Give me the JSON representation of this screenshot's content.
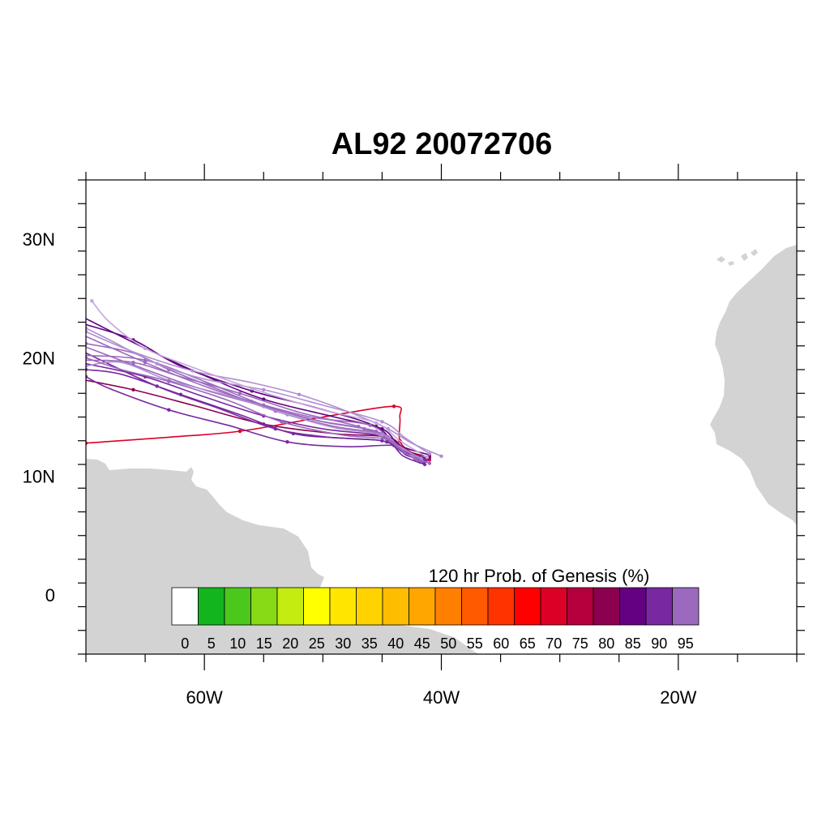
{
  "title": "AL92 20072706",
  "map": {
    "lon_range": [
      -70,
      -10
    ],
    "lat_range": [
      -5,
      35
    ],
    "land_color": "#d3d3d3",
    "ocean_color": "#ffffff",
    "lon_labels": [
      {
        "lon": -60,
        "text": "60W"
      },
      {
        "lon": -40,
        "text": "40W"
      },
      {
        "lon": -20,
        "text": "20W"
      }
    ],
    "lat_labels": [
      {
        "lat": 30,
        "text": "30N"
      },
      {
        "lat": 20,
        "text": "20N"
      },
      {
        "lat": 10,
        "text": "10N"
      },
      {
        "lat": 0,
        "text": "0"
      }
    ]
  },
  "colorbar": {
    "title": "120 hr Prob. of Genesis (%)",
    "labels": [
      "0",
      "5",
      "10",
      "15",
      "20",
      "25",
      "30",
      "35",
      "40",
      "45",
      "50",
      "55",
      "60",
      "65",
      "70",
      "75",
      "80",
      "85",
      "90",
      "95"
    ],
    "colors": [
      "#ffffff",
      "#13b41e",
      "#4cc71c",
      "#88d916",
      "#c4ec10",
      "#ffff00",
      "#ffe600",
      "#ffd200",
      "#ffbd00",
      "#ffa600",
      "#ff8000",
      "#ff5a00",
      "#ff3300",
      "#ff0000",
      "#dc0027",
      "#b4003c",
      "#8c0050",
      "#640082",
      "#7828a0",
      "#9b69be"
    ]
  },
  "chart_data": {
    "type": "map-tracks",
    "title": "AL92 20072706",
    "colorbar_label": "120 hr Prob. of Genesis (%)",
    "tracks": [
      {
        "color": "#dc0027",
        "points": [
          [
            -41.0,
            11.4
          ],
          [
            -42.5,
            12.0
          ],
          [
            -43.5,
            13.0
          ],
          [
            -43.5,
            15.0
          ],
          [
            -44.0,
            15.9
          ],
          [
            -50.0,
            15.0
          ],
          [
            -57.0,
            13.8
          ],
          [
            -63.0,
            13.3
          ],
          [
            -70.0,
            12.8
          ]
        ]
      },
      {
        "color": "#8c0050",
        "points": [
          [
            -41.0,
            11.6
          ],
          [
            -43.0,
            12.2
          ],
          [
            -44.5,
            13.3
          ],
          [
            -49.0,
            13.6
          ],
          [
            -55.0,
            14.4
          ],
          [
            -61.0,
            16.0
          ],
          [
            -66.0,
            17.3
          ],
          [
            -70.0,
            18.1
          ]
        ]
      },
      {
        "color": "#640082",
        "points": [
          [
            -41.0,
            11.8
          ],
          [
            -43.5,
            12.6
          ],
          [
            -45.0,
            14.0
          ],
          [
            -49.0,
            15.0
          ],
          [
            -55.0,
            16.5
          ],
          [
            -60.0,
            18.5
          ],
          [
            -65.0,
            20.8
          ],
          [
            -70.0,
            23.3
          ]
        ]
      },
      {
        "color": "#640082",
        "points": [
          [
            -41.2,
            11.5
          ],
          [
            -43.8,
            12.4
          ],
          [
            -45.5,
            14.2
          ],
          [
            -51.0,
            15.9
          ],
          [
            -56.0,
            17.2
          ],
          [
            -62.0,
            19.3
          ],
          [
            -66.0,
            21.5
          ],
          [
            -70.0,
            22.8
          ]
        ]
      },
      {
        "color": "#7828a0",
        "points": [
          [
            -41.3,
            11.3
          ],
          [
            -43.0,
            11.8
          ],
          [
            -44.0,
            12.6
          ],
          [
            -48.0,
            12.5
          ],
          [
            -53.0,
            12.9
          ],
          [
            -58.0,
            14.3
          ],
          [
            -63.0,
            15.6
          ],
          [
            -68.0,
            17.4
          ],
          [
            -70.0,
            18.4
          ]
        ]
      },
      {
        "color": "#7828a0",
        "points": [
          [
            -41.5,
            11.4
          ],
          [
            -43.5,
            12.3
          ],
          [
            -45.0,
            13.4
          ],
          [
            -50.0,
            14.0
          ],
          [
            -55.0,
            15.1
          ],
          [
            -60.0,
            16.7
          ],
          [
            -65.0,
            18.4
          ],
          [
            -70.0,
            19.5
          ]
        ]
      },
      {
        "color": "#7828a0",
        "points": [
          [
            -41.5,
            11.2
          ],
          [
            -43.2,
            12.0
          ],
          [
            -45.0,
            13.0
          ],
          [
            -49.5,
            13.3
          ],
          [
            -54.0,
            14.0
          ],
          [
            -59.0,
            15.8
          ],
          [
            -64.0,
            17.6
          ],
          [
            -70.0,
            20.4
          ]
        ]
      },
      {
        "color": "#9b69be",
        "points": [
          [
            -41.8,
            11.5
          ],
          [
            -44.0,
            12.8
          ],
          [
            -46.0,
            14.3
          ],
          [
            -51.0,
            15.0
          ],
          [
            -56.0,
            16.3
          ],
          [
            -60.0,
            17.6
          ],
          [
            -65.0,
            19.6
          ],
          [
            -70.0,
            21.8
          ]
        ]
      },
      {
        "color": "#9b69be",
        "points": [
          [
            -41.8,
            11.2
          ],
          [
            -43.8,
            12.5
          ],
          [
            -45.5,
            13.8
          ],
          [
            -50.0,
            14.6
          ],
          [
            -55.0,
            15.9
          ],
          [
            -61.0,
            17.6
          ],
          [
            -66.0,
            19.4
          ],
          [
            -70.0,
            20.9
          ]
        ]
      },
      {
        "color": "#9b69be",
        "points": [
          [
            -42.0,
            11.6
          ],
          [
            -44.3,
            13.0
          ],
          [
            -46.5,
            14.0
          ],
          [
            -51.0,
            14.8
          ],
          [
            -55.0,
            16.0
          ],
          [
            -60.0,
            18.0
          ],
          [
            -65.0,
            19.8
          ],
          [
            -70.0,
            20.2
          ]
        ]
      },
      {
        "color": "#9b69be",
        "points": [
          [
            -41.6,
            11.3
          ],
          [
            -43.7,
            12.6
          ],
          [
            -45.0,
            13.6
          ],
          [
            -49.0,
            14.2
          ],
          [
            -54.0,
            15.5
          ],
          [
            -59.0,
            17.4
          ],
          [
            -63.0,
            19.0
          ],
          [
            -66.0,
            20.4
          ],
          [
            -70.0,
            21.2
          ]
        ]
      },
      {
        "color": "#9b69be",
        "points": [
          [
            -42.2,
            11.4
          ],
          [
            -44.5,
            13.0
          ],
          [
            -47.0,
            14.2
          ],
          [
            -52.0,
            15.4
          ],
          [
            -57.0,
            17.0
          ],
          [
            -62.0,
            18.4
          ],
          [
            -66.0,
            19.6
          ],
          [
            -70.0,
            19.8
          ]
        ]
      },
      {
        "color": "#b08ed0",
        "points": [
          [
            -40.0,
            11.7
          ],
          [
            -42.5,
            12.8
          ],
          [
            -44.5,
            14.0
          ],
          [
            -48.0,
            15.5
          ],
          [
            -52.0,
            16.9
          ],
          [
            -56.0,
            17.9
          ],
          [
            -61.0,
            18.9
          ],
          [
            -66.0,
            20.5
          ],
          [
            -70.0,
            22.2
          ]
        ]
      },
      {
        "color": "#b08ed0",
        "points": [
          [
            -41.0,
            11.9
          ],
          [
            -43.0,
            13.2
          ],
          [
            -45.0,
            14.6
          ],
          [
            -50.0,
            16.0
          ],
          [
            -55.0,
            17.3
          ],
          [
            -60.0,
            18.2
          ],
          [
            -64.0,
            19.5
          ],
          [
            -68.0,
            21.5
          ],
          [
            -70.0,
            22.5
          ]
        ]
      },
      {
        "color": "#c3a6dc",
        "points": [
          [
            -41.2,
            11.6
          ],
          [
            -43.5,
            13.0
          ],
          [
            -45.5,
            14.5
          ],
          [
            -50.0,
            15.6
          ],
          [
            -56.0,
            17.4
          ],
          [
            -61.0,
            19.2
          ],
          [
            -65.0,
            20.8
          ],
          [
            -68.0,
            23.0
          ],
          [
            -69.5,
            24.8
          ]
        ]
      },
      {
        "color": "#b08ed0",
        "points": [
          [
            -41.7,
            11.5
          ],
          [
            -43.5,
            12.5
          ],
          [
            -45.0,
            13.5
          ],
          [
            -49.0,
            14.1
          ],
          [
            -53.0,
            15.2
          ],
          [
            -58.0,
            16.8
          ],
          [
            -63.0,
            18.1
          ],
          [
            -67.0,
            19.6
          ],
          [
            -70.0,
            19.3
          ]
        ]
      },
      {
        "color": "#9b69be",
        "points": [
          [
            -41.0,
            11.1
          ],
          [
            -43.0,
            11.9
          ],
          [
            -44.5,
            13.1
          ],
          [
            -48.5,
            13.5
          ],
          [
            -53.5,
            14.6
          ],
          [
            -58.0,
            16.4
          ],
          [
            -63.0,
            18.0
          ],
          [
            -67.0,
            19.0
          ],
          [
            -70.0,
            20.0
          ]
        ]
      },
      {
        "color": "#7828a0",
        "points": [
          [
            -41.4,
            11.0
          ],
          [
            -43.2,
            11.7
          ],
          [
            -44.6,
            12.9
          ],
          [
            -48.0,
            13.2
          ],
          [
            -52.5,
            13.6
          ],
          [
            -57.0,
            15.2
          ],
          [
            -62.0,
            16.9
          ],
          [
            -67.0,
            18.6
          ],
          [
            -70.0,
            19.0
          ]
        ]
      }
    ]
  }
}
